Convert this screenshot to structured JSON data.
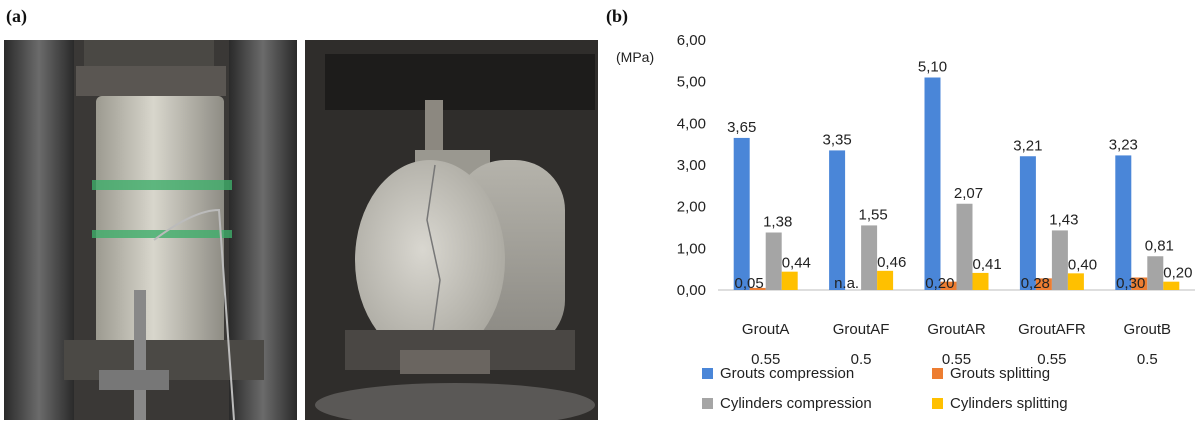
{
  "panel_labels": {
    "a": "(a)",
    "b": "(b)"
  },
  "colors": {
    "grouts_compression": "#4a86d8",
    "grouts_splitting": "#ed7d31",
    "cylinders_compression": "#a5a5a5",
    "cylinders_splitting": "#ffc000"
  },
  "chart_data": {
    "type": "bar",
    "title": "",
    "unit_label": "(MPa)",
    "ylim": [
      0,
      6
    ],
    "yticks": [
      "0,00",
      "1,00",
      "2,00",
      "3,00",
      "4,00",
      "5,00",
      "6,00"
    ],
    "grid": false,
    "legend_position": "bottom",
    "categories": [
      {
        "name": "GroutA",
        "wc": "0.55"
      },
      {
        "name": "GroutAF",
        "wc": "0.5"
      },
      {
        "name": "GroutAR",
        "wc": "0.55"
      },
      {
        "name": "GroutAFR",
        "wc": "0.55"
      },
      {
        "name": "GroutB",
        "wc": "0.5"
      }
    ],
    "series": [
      {
        "name": "Grouts compression",
        "color": "#4a86d8",
        "values": [
          3.65,
          3.35,
          5.1,
          3.21,
          3.23
        ],
        "labels": [
          "3,65",
          "3,35",
          "5,10",
          "3,21",
          "3,23"
        ]
      },
      {
        "name": "Grouts splitting",
        "color": "#ed7d31",
        "values": [
          0.05,
          null,
          0.2,
          0.28,
          0.3
        ],
        "labels": [
          "0,05",
          "n.a.",
          "0,20",
          "0,28",
          "0,30"
        ]
      },
      {
        "name": "Cylinders compression",
        "color": "#a5a5a5",
        "values": [
          1.38,
          1.55,
          2.07,
          1.43,
          0.81
        ],
        "labels": [
          "1,38",
          "1,55",
          "2,07",
          "1,43",
          "0,81"
        ]
      },
      {
        "name": "Cylinders splitting",
        "color": "#ffc000",
        "values": [
          0.44,
          0.46,
          0.41,
          0.4,
          0.2
        ],
        "labels": [
          "0,44",
          "0,46",
          "0,41",
          "0,40",
          "0,20"
        ]
      }
    ]
  }
}
